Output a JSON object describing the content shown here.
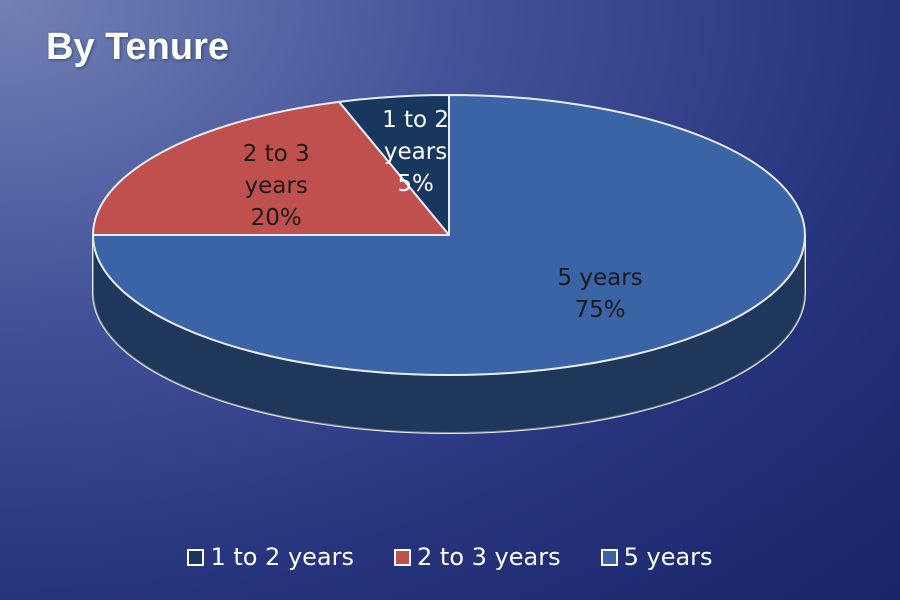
{
  "chart_data": {
    "type": "pie3d",
    "title": "By Tenure",
    "categories": [
      "1 to 2 years",
      "2 to 3 years",
      "5 years"
    ],
    "values": [
      5,
      20,
      75
    ],
    "value_labels": [
      "5%",
      "20%",
      "75%"
    ],
    "colors": [
      "#17375e",
      "#c0504d",
      "#3a64a6"
    ],
    "legend": "bottom"
  }
}
